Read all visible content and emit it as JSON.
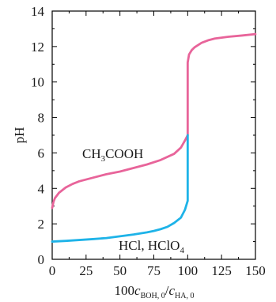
{
  "chart_data": {
    "type": "line",
    "xlim": [
      0,
      150
    ],
    "ylim": [
      0,
      14
    ],
    "x_ticks": [
      0,
      25,
      50,
      75,
      100,
      125,
      150
    ],
    "y_ticks": [
      0,
      2,
      4,
      6,
      8,
      10,
      12,
      14
    ],
    "ylabel": "pH",
    "xlabel": {
      "prefix": "100",
      "num_var": "c",
      "num_sub": "BOH, 0",
      "slash": "/",
      "den_var": "c",
      "den_sub": "HA, 0"
    },
    "grid": false,
    "series": [
      {
        "name": "CH3COOH",
        "label_parts": {
          "a": "CH",
          "sub": "3",
          "b": "COOH"
        },
        "color": "#e8649a",
        "points": [
          [
            0,
            2.9
          ],
          [
            1,
            3.25
          ],
          [
            2,
            3.45
          ],
          [
            5,
            3.75
          ],
          [
            10,
            4.05
          ],
          [
            15,
            4.25
          ],
          [
            20,
            4.4
          ],
          [
            30,
            4.6
          ],
          [
            40,
            4.8
          ],
          [
            50,
            4.95
          ],
          [
            60,
            5.15
          ],
          [
            70,
            5.35
          ],
          [
            80,
            5.6
          ],
          [
            90,
            5.95
          ],
          [
            95,
            6.3
          ],
          [
            98,
            6.7
          ],
          [
            100,
            7.0
          ],
          [
            100,
            11.1
          ],
          [
            101,
            11.55
          ],
          [
            103,
            11.8
          ],
          [
            105,
            11.95
          ],
          [
            110,
            12.2
          ],
          [
            115,
            12.35
          ],
          [
            120,
            12.45
          ],
          [
            130,
            12.55
          ],
          [
            140,
            12.62
          ],
          [
            150,
            12.7
          ]
        ]
      },
      {
        "name": "HCl, HClO4",
        "label_parts": {
          "a": "HCl, HClO",
          "sub": "4",
          "b": ""
        },
        "color": "#1eb3e8",
        "points": [
          [
            0,
            1.0
          ],
          [
            10,
            1.04
          ],
          [
            20,
            1.09
          ],
          [
            30,
            1.14
          ],
          [
            40,
            1.2
          ],
          [
            50,
            1.3
          ],
          [
            60,
            1.4
          ],
          [
            70,
            1.52
          ],
          [
            75,
            1.6
          ],
          [
            80,
            1.7
          ],
          [
            85,
            1.83
          ],
          [
            90,
            2.05
          ],
          [
            95,
            2.35
          ],
          [
            98,
            2.8
          ],
          [
            100,
            3.3
          ],
          [
            100,
            7.0
          ]
        ]
      }
    ]
  }
}
